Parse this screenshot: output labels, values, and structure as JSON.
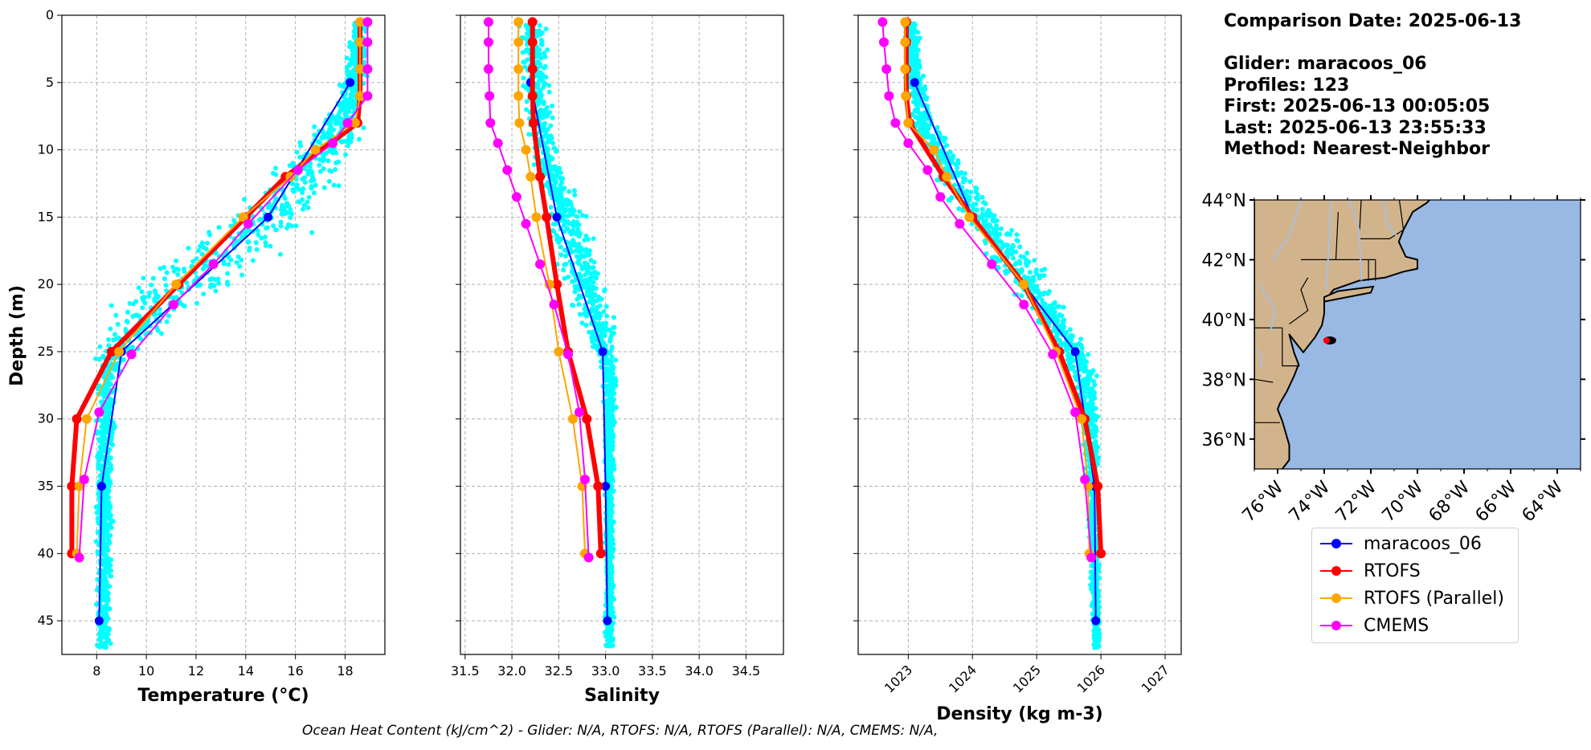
{
  "info": {
    "comparison_date": "Comparison Date: 2025-06-13",
    "glider": "Glider: maracoos_06",
    "profiles": "Profiles: 123",
    "first": "First: 2025-06-13 00:05:05",
    "last": "Last: 2025-06-13 23:55:33",
    "method": "Method: Nearest-Neighbor"
  },
  "footnote": "Ocean Heat Content (kJ/cm^2) - Glider: N/A,  RTOFS: N/A,  RTOFS (Parallel): N/A,  CMEMS: N/A,",
  "colors": {
    "glider": "#0000ff",
    "rtofs": "#ff0000",
    "rtofs_parallel": "#ffa500",
    "cmems": "#ff00ff",
    "scatter": "#00ffff",
    "land": "#d2b48c",
    "ocean": "#99b8e3"
  },
  "legend": [
    {
      "label": "maracoos_06",
      "color": "#0000ff"
    },
    {
      "label": "RTOFS",
      "color": "#ff0000"
    },
    {
      "label": "RTOFS (Parallel)",
      "color": "#ffa500"
    },
    {
      "label": "CMEMS",
      "color": "#ff00ff"
    }
  ],
  "chart_data": [
    {
      "type": "line",
      "xlabel": "Temperature (°C)",
      "ylabel": "Depth (m)",
      "xlim": [
        6.6,
        19.6
      ],
      "ylim": [
        47.5,
        0
      ],
      "xticks": [
        "8",
        "10",
        "12",
        "14",
        "16",
        "18"
      ],
      "yticks": [
        "0",
        "5",
        "10",
        "15",
        "20",
        "25",
        "30",
        "35",
        "40",
        "45"
      ],
      "grid": true,
      "scatter_envelope": {
        "name": "maracoos_06 profiles",
        "depth": [
          0.5,
          5,
          8,
          10,
          12,
          15,
          18,
          21,
          23,
          25,
          27,
          30,
          35,
          40,
          45,
          47
        ],
        "min": [
          18.2,
          17.8,
          16.8,
          15.5,
          14.4,
          12.5,
          10.0,
          8.3,
          8.0,
          7.9,
          7.9,
          7.9,
          7.9,
          7.9,
          7.9,
          7.9
        ],
        "max": [
          19.0,
          19.0,
          18.9,
          18.8,
          18.3,
          17.5,
          15.8,
          13.5,
          11.5,
          9.8,
          9.0,
          8.8,
          8.7,
          8.7,
          8.7,
          8.6
        ]
      },
      "series": [
        {
          "name": "maracoos_06",
          "depth": [
            5,
            15,
            25,
            35,
            45
          ],
          "values": [
            18.2,
            14.9,
            9.0,
            8.2,
            8.1
          ]
        },
        {
          "name": "RTOFS",
          "depth": [
            0.5,
            2,
            4,
            6,
            8,
            12,
            15,
            20,
            25,
            30,
            35,
            40
          ],
          "values": [
            18.6,
            18.6,
            18.6,
            18.6,
            18.5,
            15.6,
            14.0,
            11.3,
            8.6,
            7.2,
            7.0,
            7.0
          ]
        },
        {
          "name": "RTOFS (Parallel)",
          "depth": [
            0.5,
            2,
            4,
            6,
            8,
            10,
            12,
            15,
            20,
            25,
            30,
            35,
            40
          ],
          "values": [
            18.6,
            18.6,
            18.6,
            18.6,
            18.4,
            16.8,
            15.8,
            13.9,
            11.2,
            8.9,
            7.6,
            7.3,
            7.2
          ]
        },
        {
          "name": "CMEMS",
          "depth": [
            0.5,
            2,
            4,
            6,
            8,
            9.5,
            11.5,
            15.5,
            18.5,
            21.5,
            25.2,
            29.5,
            34.5,
            40.3
          ],
          "values": [
            18.9,
            18.9,
            18.9,
            18.9,
            18.1,
            17.5,
            16.1,
            14.1,
            12.7,
            11.1,
            9.4,
            8.1,
            7.5,
            7.3
          ]
        }
      ]
    },
    {
      "type": "line",
      "xlabel": "Salinity",
      "xlim": [
        31.45,
        34.9
      ],
      "ylim": [
        47.5,
        0
      ],
      "xticks": [
        "31.5",
        "32.0",
        "32.5",
        "33.0",
        "33.5",
        "34.0",
        "34.5"
      ],
      "grid": true,
      "scatter_envelope": {
        "name": "maracoos_06 profiles",
        "depth": [
          0.5,
          5,
          8,
          10,
          12,
          15,
          18,
          21,
          23,
          25,
          27,
          30,
          35,
          40,
          45,
          47
        ],
        "min": [
          32.05,
          32.05,
          32.1,
          32.15,
          32.2,
          32.3,
          32.4,
          32.55,
          32.7,
          32.85,
          32.95,
          32.97,
          32.97,
          32.98,
          32.98,
          32.98
        ],
        "max": [
          32.4,
          32.45,
          32.5,
          32.55,
          32.65,
          32.85,
          33.0,
          33.1,
          33.15,
          33.15,
          33.15,
          33.12,
          33.1,
          33.1,
          33.1,
          33.1
        ]
      },
      "series": [
        {
          "name": "maracoos_06",
          "depth": [
            5,
            15,
            25,
            35,
            45
          ],
          "values": [
            32.2,
            32.48,
            32.97,
            33.0,
            33.02
          ]
        },
        {
          "name": "RTOFS",
          "depth": [
            0.5,
            2,
            4,
            6,
            8,
            12,
            15,
            20,
            25,
            30,
            35,
            40
          ],
          "values": [
            32.22,
            32.22,
            32.22,
            32.22,
            32.23,
            32.3,
            32.37,
            32.48,
            32.6,
            32.8,
            32.92,
            32.95
          ]
        },
        {
          "name": "RTOFS (Parallel)",
          "depth": [
            0.5,
            2,
            4,
            6,
            8,
            10,
            12,
            15,
            20,
            25,
            30,
            35,
            40
          ],
          "values": [
            32.07,
            32.07,
            32.07,
            32.07,
            32.08,
            32.15,
            32.2,
            32.26,
            32.4,
            32.5,
            32.65,
            32.75,
            32.78
          ]
        },
        {
          "name": "CMEMS",
          "depth": [
            0.5,
            2,
            4,
            6,
            8,
            9.5,
            11.5,
            13.5,
            15.5,
            18.5,
            21.5,
            25.2,
            29.5,
            34.5,
            40.3
          ],
          "values": [
            31.75,
            31.75,
            31.75,
            31.76,
            31.77,
            31.85,
            31.95,
            32.05,
            32.15,
            32.3,
            32.45,
            32.6,
            32.72,
            32.78,
            32.82
          ]
        }
      ]
    },
    {
      "type": "line",
      "xlabel": "Density (kg m-3)",
      "xlim": [
        1022.22,
        1027.25
      ],
      "ylim": [
        47.5,
        0
      ],
      "xticks": [
        "1023",
        "1024",
        "1025",
        "1026",
        "1027"
      ],
      "grid": true,
      "scatter_envelope": {
        "name": "maracoos_06 profiles",
        "depth": [
          0.5,
          5,
          8,
          10,
          12,
          15,
          18,
          21,
          23,
          25,
          27,
          30,
          35,
          40,
          45,
          47
        ],
        "min": [
          1022.9,
          1022.9,
          1023.0,
          1023.1,
          1023.3,
          1023.7,
          1024.1,
          1024.6,
          1025.0,
          1025.3,
          1025.5,
          1025.65,
          1025.75,
          1025.8,
          1025.85,
          1025.85
        ],
        "max": [
          1023.2,
          1023.3,
          1023.5,
          1023.8,
          1024.1,
          1024.6,
          1025.1,
          1025.4,
          1025.6,
          1025.9,
          1026.0,
          1026.0,
          1026.0,
          1026.0,
          1026.0,
          1026.0
        ]
      },
      "series": [
        {
          "name": "maracoos_06",
          "depth": [
            5,
            15,
            25,
            35,
            45
          ],
          "values": [
            1023.1,
            1024.0,
            1025.6,
            1025.9,
            1025.92
          ]
        },
        {
          "name": "RTOFS",
          "depth": [
            0.5,
            2,
            4,
            6,
            8,
            12,
            15,
            20,
            25,
            30,
            35,
            40
          ],
          "values": [
            1022.97,
            1022.97,
            1022.97,
            1022.97,
            1023.02,
            1023.55,
            1024.0,
            1024.8,
            1025.35,
            1025.75,
            1025.95,
            1026.0
          ]
        },
        {
          "name": "RTOFS (Parallel)",
          "depth": [
            0.5,
            2,
            4,
            6,
            8,
            10,
            12,
            15,
            20,
            25,
            30,
            35,
            40
          ],
          "values": [
            1022.95,
            1022.95,
            1022.95,
            1022.96,
            1023.0,
            1023.4,
            1023.6,
            1023.95,
            1024.8,
            1025.3,
            1025.7,
            1025.8,
            1025.82
          ]
        },
        {
          "name": "CMEMS",
          "depth": [
            0.5,
            2,
            4,
            6,
            8,
            9.5,
            11.5,
            13.5,
            15.5,
            18.5,
            21.5,
            25.2,
            29.5,
            34.5,
            40.3
          ],
          "values": [
            1022.6,
            1022.62,
            1022.66,
            1022.7,
            1022.8,
            1023.0,
            1023.3,
            1023.5,
            1023.8,
            1024.3,
            1024.8,
            1025.25,
            1025.6,
            1025.75,
            1025.85
          ]
        }
      ]
    }
  ],
  "map": {
    "lat_labels": [
      "44°N",
      "42°N",
      "40°N",
      "38°N",
      "36°N"
    ],
    "lon_labels": [
      "76°W",
      "74°W",
      "72°W",
      "70°W",
      "68°W",
      "66°W",
      "64°W"
    ],
    "lat_range": [
      35,
      44
    ],
    "lon_range": [
      -77,
      -63
    ],
    "glider_position": {
      "lon": -73.9,
      "lat": 39.3
    }
  }
}
